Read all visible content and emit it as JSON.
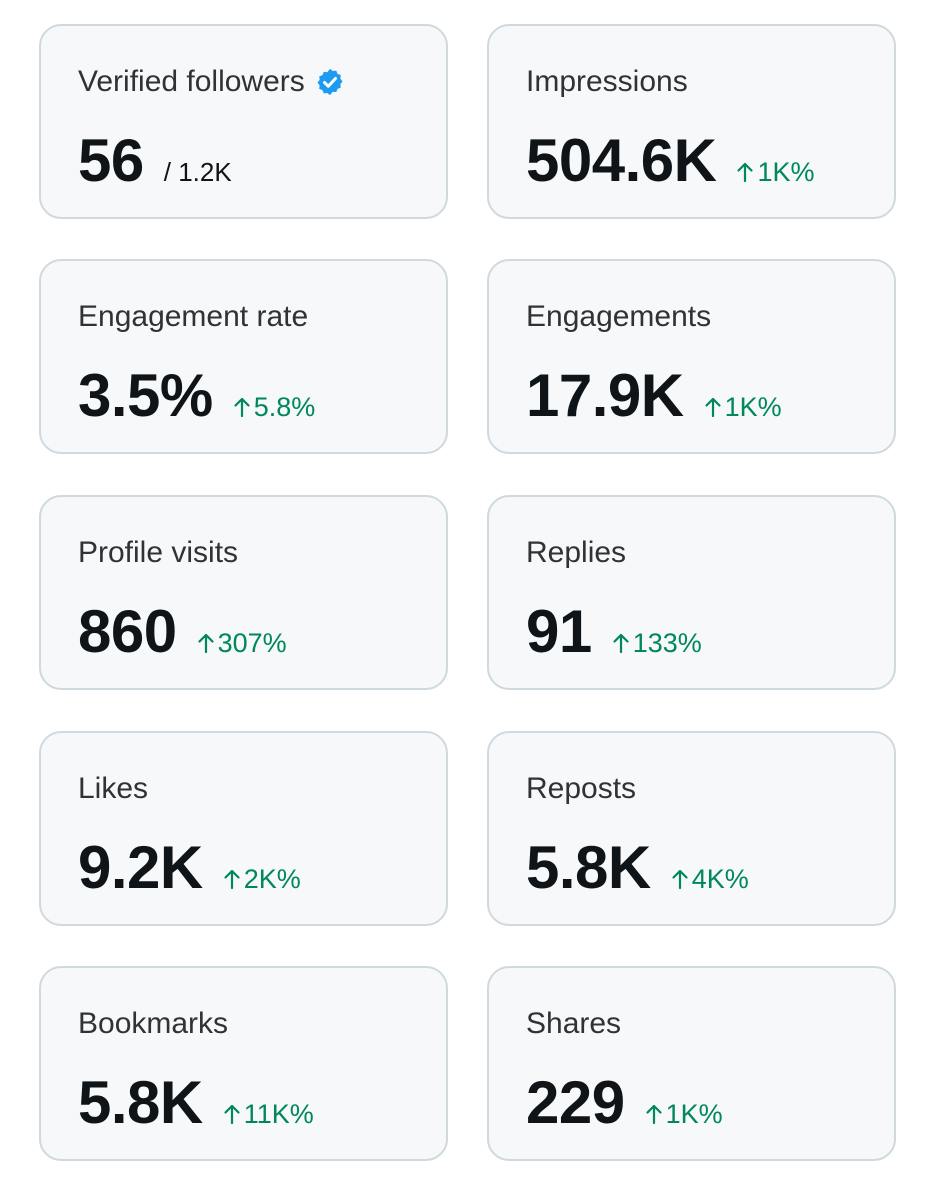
{
  "metrics": [
    {
      "label": "Verified followers",
      "value": "56",
      "sub": "/ 1.2K",
      "verified": true
    },
    {
      "label": "Impressions",
      "value": "504.6K",
      "delta": "1K%"
    },
    {
      "label": "Engagement rate",
      "value": "3.5%",
      "delta": "5.8%"
    },
    {
      "label": "Engagements",
      "value": "17.9K",
      "delta": "1K%"
    },
    {
      "label": "Profile visits",
      "value": "860",
      "delta": "307%"
    },
    {
      "label": "Replies",
      "value": "91",
      "delta": "133%"
    },
    {
      "label": "Likes",
      "value": "9.2K",
      "delta": "2K%"
    },
    {
      "label": "Reposts",
      "value": "5.8K",
      "delta": "4K%"
    },
    {
      "label": "Bookmarks",
      "value": "5.8K",
      "delta": "11K%"
    },
    {
      "label": "Shares",
      "value": "229",
      "delta": "1K%"
    }
  ],
  "colors": {
    "card_bg": "#f6f8f9",
    "card_border": "#cfd9de",
    "delta_up": "#00875a",
    "verified": "#1d9bf0"
  },
  "icons": {
    "verified": "verified-badge-icon",
    "delta": "arrow-up-icon"
  }
}
